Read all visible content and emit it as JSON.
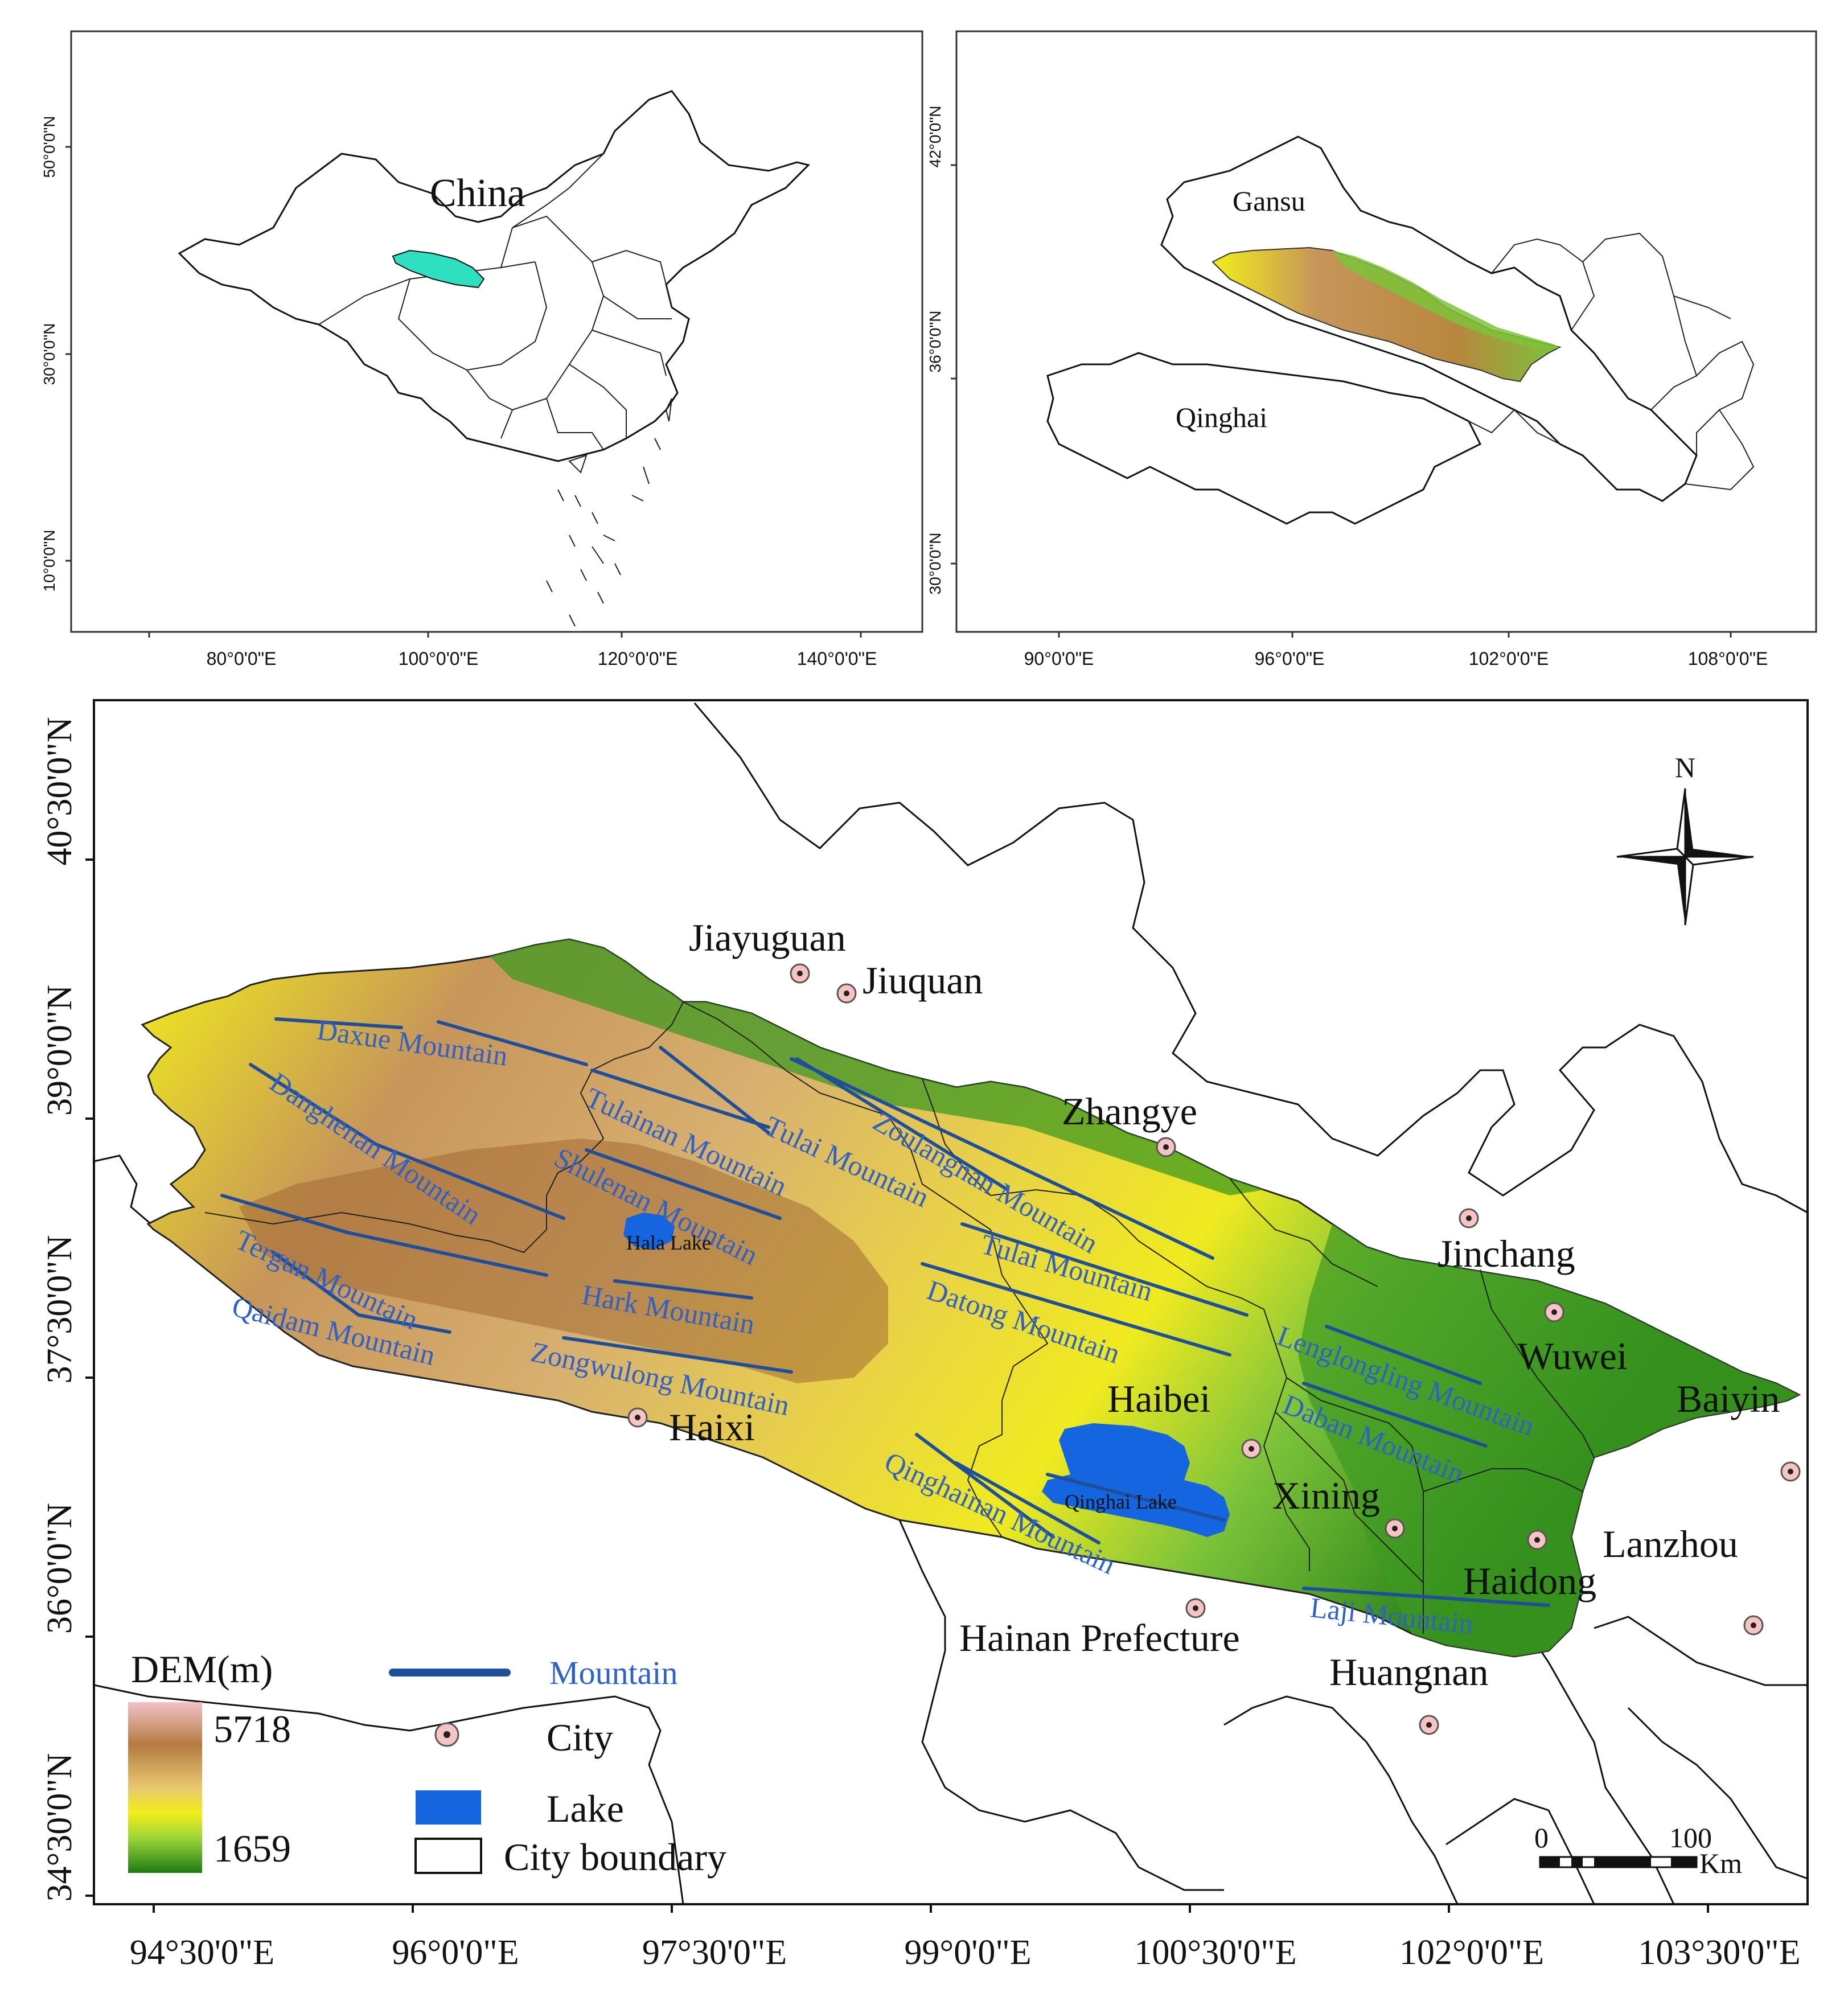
{
  "colors": {
    "mountain": "#1f4e9a",
    "mountain_label": "#2f62c4",
    "lake": "#1565e0",
    "study_area_china": "#2fe0c0",
    "dem_high": "#f2c2c8",
    "dem_mid": "#c7955a",
    "dem_yellow": "#f1ee1a",
    "dem_low": "#1f7a13"
  },
  "inset1": {
    "region_label": "China",
    "lat_ticks": [
      "50°0'0\"N",
      "30°0'0\"N",
      "10°0'0\"N"
    ],
    "lon_ticks": [
      "80°0'0\"E",
      "100°0'0\"E",
      "120°0'0\"E",
      "140°0'0\"E"
    ]
  },
  "inset2": {
    "province_labels": [
      "Gansu",
      "Qinghai"
    ],
    "lat_ticks": [
      "42°0'0\"N",
      "36°0'0\"N",
      "30°0'0\"N"
    ],
    "lon_ticks": [
      "90°0'0\"E",
      "96°0'0\"E",
      "102°0'0\"E",
      "108°0'0\"E"
    ]
  },
  "main": {
    "lat_ticks": [
      "40°30'0\"N",
      "39°0'0\"N",
      "37°30'0\"N",
      "36°0'0\"N",
      "34°30'0\"N"
    ],
    "lon_ticks": [
      "94°30'0\"E",
      "96°0'0\"E",
      "97°30'0\"E",
      "99°0'0\"E",
      "100°30'0\"E",
      "102°0'0\"E",
      "103°30'0\"E"
    ],
    "north_label": "N",
    "cities": [
      "Jiayuguan",
      "Jiuquan",
      "Zhangye",
      "Jinchang",
      "Wuwei",
      "Baiyin",
      "Haibei",
      "Haixi",
      "Xining",
      "Lanzhou",
      "Haidong",
      "Hainan Prefecture",
      "Huangnan"
    ],
    "lakes": [
      "Hala Lake",
      "Qinghai Lake"
    ],
    "mountains": [
      "Daxue Mountain",
      "Danghenan Mountain",
      "Tulainan Mountain",
      "Tulai Mountain",
      "Zoulangnan Mountain",
      "Shulenan Mountain",
      "Tergun Mountain",
      "Hark Mountain",
      "Tulai Mountain",
      "Datong Mountain",
      "Qaidam Mountain",
      "Zongwulong Mountain",
      "Lenglongling Mountain",
      "Daban Mountain",
      "Qinghainan Mountain",
      "Laji Mountain"
    ],
    "legend": {
      "dem_title": "DEM(m)",
      "dem_max": "5718",
      "dem_min": "1659",
      "mountain": "Mountain",
      "city": "City",
      "lake": "Lake",
      "city_boundary": "City boundary"
    },
    "scale": {
      "zero": "0",
      "hundred": "100",
      "unit": "Km"
    }
  }
}
